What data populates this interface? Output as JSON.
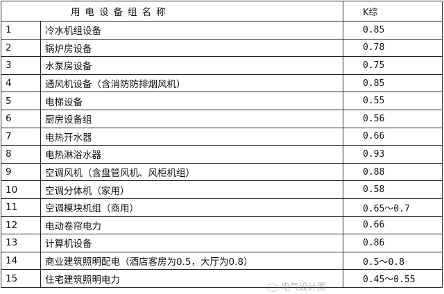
{
  "header": {
    "name": "用电设备组名称",
    "k": "K综"
  },
  "rows": [
    {
      "no": "1",
      "name": "冷水机组设备",
      "k": "0.85"
    },
    {
      "no": "2",
      "name": "锅炉房设备",
      "k": "0.78"
    },
    {
      "no": "3",
      "name": "水泵房设备",
      "k": "0.75"
    },
    {
      "no": "4",
      "name": "通风机设备（含消防防排烟风机）",
      "k": "0.85"
    },
    {
      "no": "5",
      "name": "电梯设备",
      "k": "0.55"
    },
    {
      "no": "6",
      "name": "厨房设备组",
      "k": "0.56"
    },
    {
      "no": "7",
      "name": "电热开水器",
      "k": "0.66"
    },
    {
      "no": "8",
      "name": "电热淋浴水器",
      "k": "0.93"
    },
    {
      "no": "9",
      "name": "空调风机（含盘管风机、风柜机组）",
      "k": "0.88"
    },
    {
      "no": "10",
      "name": "空调分体机（家用）",
      "k": "0.58"
    },
    {
      "no": "11",
      "name": "空调模块机组（商用）",
      "k": "0.65～0.7"
    },
    {
      "no": "12",
      "name": "电动卷帘电力",
      "k": "0.66"
    },
    {
      "no": "13",
      "name": "计算机设备",
      "k": "0.86"
    },
    {
      "no": "14",
      "name": "商业建筑照明配电（酒店客房为0.5，大厅为0.8）",
      "k": "0.5～0.8"
    },
    {
      "no": "15",
      "name": "住宅建筑照明电力",
      "k": "0.45～0.55"
    }
  ],
  "watermark": "电气设计圈"
}
